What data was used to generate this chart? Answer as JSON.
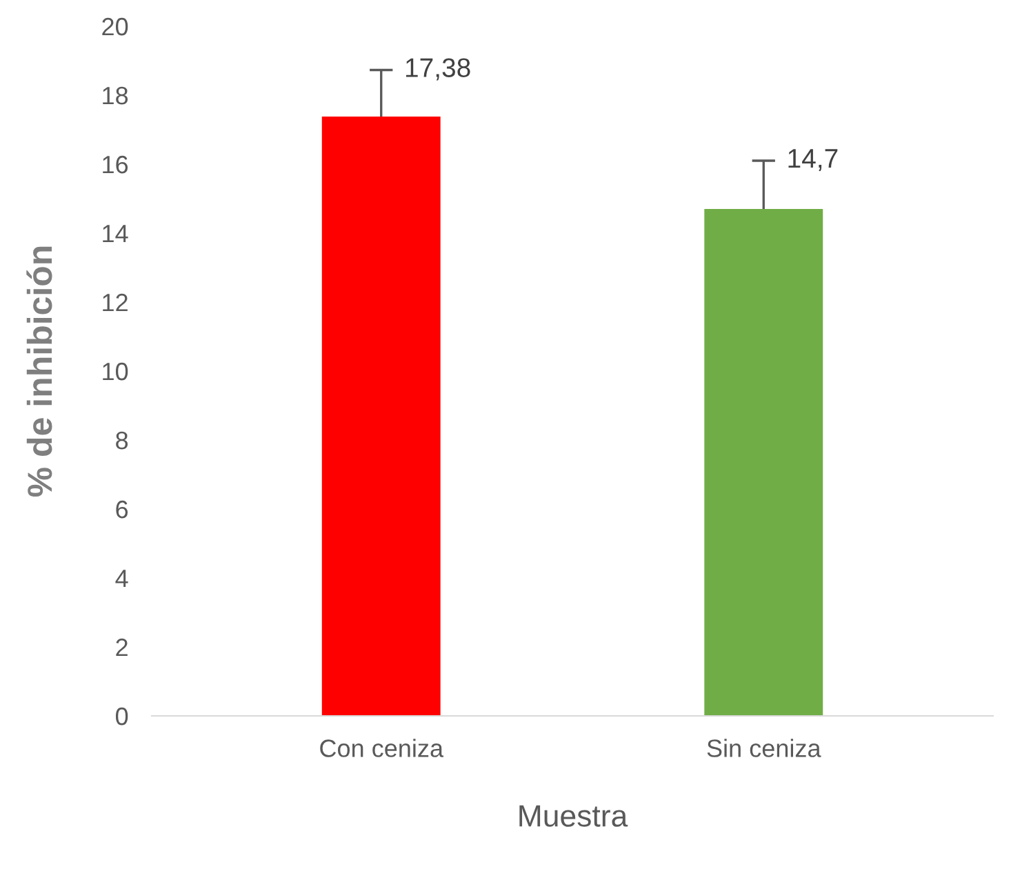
{
  "chart_data": {
    "type": "bar",
    "xlabel": "Muestra",
    "ylabel": "% de inhibición",
    "categories": [
      "Con ceniza",
      "Sin ceniza"
    ],
    "values": [
      17.38,
      14.7
    ],
    "colors": [
      "#ff0000",
      "#70ad47"
    ],
    "value_labels": [
      "17,38",
      "14,7"
    ],
    "errors": [
      [
        17.38,
        18.73
      ],
      [
        14.7,
        16.1
      ]
    ],
    "ylim": [
      0,
      20
    ],
    "yticks": [
      0,
      2,
      4,
      6,
      8,
      10,
      12,
      14,
      16,
      18,
      20
    ],
    "grid": false,
    "legend": false
  }
}
